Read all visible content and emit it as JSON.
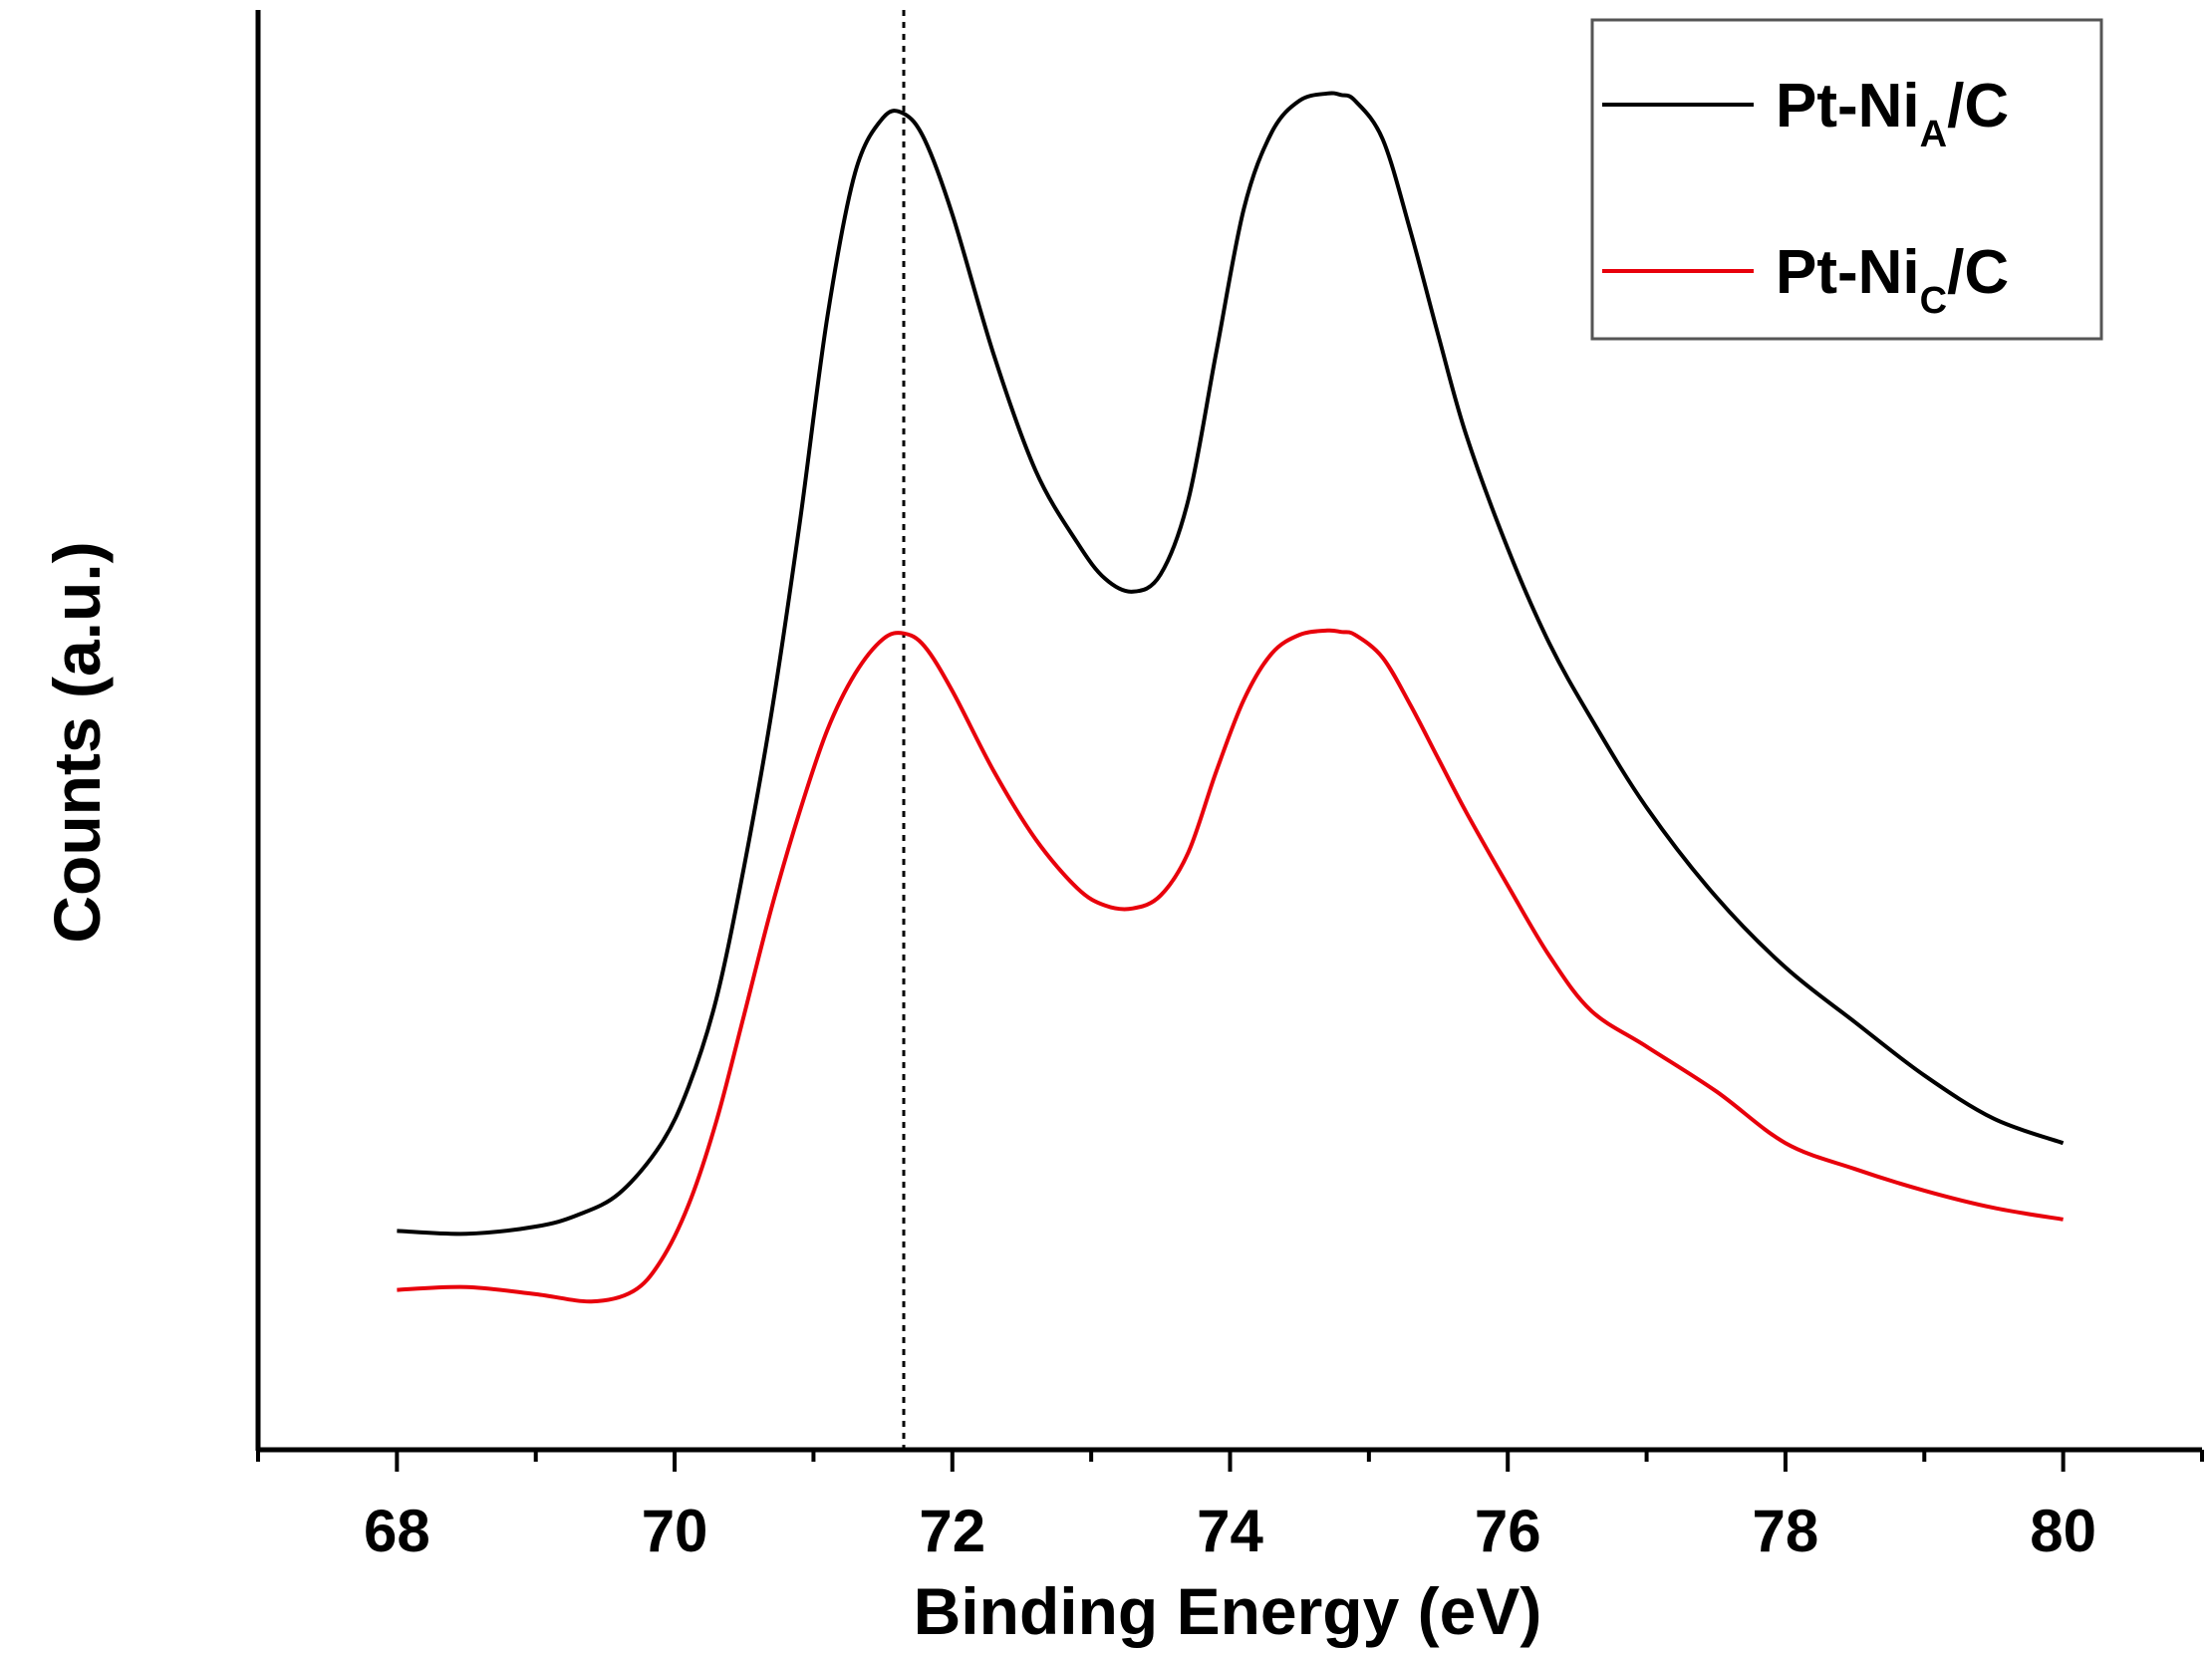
{
  "chart_data": {
    "type": "line",
    "title": "",
    "xlabel": "Binding Energy (eV)",
    "ylabel": "Counts (a.u.)",
    "xlim": [
      67,
      81
    ],
    "ylim": [
      0,
      1
    ],
    "xticks": [
      68,
      70,
      72,
      74,
      76,
      78,
      80
    ],
    "xtick_labels": [
      "68",
      "70",
      "72",
      "74",
      "76",
      "78",
      "80"
    ],
    "y_ticks_shown": false,
    "reference_line": {
      "x": 71.65,
      "style": "dotted",
      "color": "#000000"
    },
    "legend_position": "top-right",
    "series": [
      {
        "name": "Pt-NiA/C",
        "legend_main": "Pt-Ni",
        "legend_sub": "A",
        "legend_tail": "/C",
        "color": "#000000",
        "x": [
          68.0,
          68.5,
          69.0,
          69.3,
          69.6,
          69.9,
          70.1,
          70.3,
          70.5,
          70.7,
          70.9,
          71.1,
          71.3,
          71.5,
          71.65,
          71.8,
          72.0,
          72.3,
          72.6,
          72.9,
          73.1,
          73.3,
          73.5,
          73.7,
          73.9,
          74.1,
          74.3,
          74.5,
          74.7,
          74.8,
          74.9,
          75.1,
          75.3,
          75.5,
          75.7,
          76.0,
          76.3,
          76.6,
          77.0,
          77.5,
          78.0,
          78.5,
          79.0,
          79.5,
          80.0
        ],
        "y": [
          0.152,
          0.15,
          0.155,
          0.163,
          0.178,
          0.212,
          0.252,
          0.313,
          0.405,
          0.513,
          0.643,
          0.787,
          0.887,
          0.925,
          0.928,
          0.91,
          0.858,
          0.76,
          0.68,
          0.63,
          0.605,
          0.596,
          0.608,
          0.66,
          0.762,
          0.862,
          0.915,
          0.937,
          0.942,
          0.941,
          0.937,
          0.91,
          0.846,
          0.774,
          0.705,
          0.626,
          0.56,
          0.508,
          0.446,
          0.384,
          0.335,
          0.297,
          0.26,
          0.23,
          0.213
        ]
      },
      {
        "name": "Pt-NiC/C",
        "legend_main": "Pt-Ni",
        "legend_sub": "C",
        "legend_tail": "/C",
        "color": "#e8000b",
        "x": [
          68.0,
          68.5,
          69.0,
          69.4,
          69.7,
          69.9,
          70.1,
          70.3,
          70.5,
          70.7,
          70.9,
          71.1,
          71.3,
          71.5,
          71.65,
          71.8,
          72.0,
          72.3,
          72.6,
          72.9,
          73.1,
          73.3,
          73.5,
          73.7,
          73.9,
          74.1,
          74.3,
          74.5,
          74.7,
          74.8,
          74.9,
          75.1,
          75.3,
          75.5,
          75.7,
          76.0,
          76.3,
          76.6,
          77.0,
          77.5,
          78.0,
          78.5,
          79.0,
          79.5,
          80.0
        ],
        "y": [
          0.111,
          0.113,
          0.108,
          0.103,
          0.11,
          0.131,
          0.17,
          0.228,
          0.302,
          0.377,
          0.443,
          0.5,
          0.539,
          0.563,
          0.567,
          0.558,
          0.527,
          0.471,
          0.424,
          0.39,
          0.378,
          0.376,
          0.385,
          0.415,
          0.471,
          0.521,
          0.553,
          0.566,
          0.569,
          0.568,
          0.566,
          0.55,
          0.517,
          0.48,
          0.443,
          0.392,
          0.343,
          0.305,
          0.28,
          0.249,
          0.213,
          0.195,
          0.18,
          0.168,
          0.16
        ]
      }
    ]
  }
}
